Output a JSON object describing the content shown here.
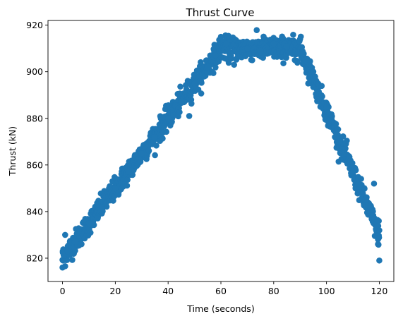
{
  "chart_data": {
    "type": "scatter",
    "title": "Thrust Curve",
    "xlabel": "Time (seconds)",
    "ylabel": "Thrust (kN)",
    "xlim": [
      -5.5,
      125.5
    ],
    "ylim": [
      810,
      922
    ],
    "xticks": [
      0,
      20,
      40,
      60,
      80,
      100,
      120
    ],
    "yticks": [
      820,
      840,
      860,
      880,
      900,
      920
    ],
    "grid": false,
    "point_color": "#1f77b4",
    "profile": {
      "x": [
        0,
        60,
        90,
        120
      ],
      "y": [
        820,
        910,
        910,
        830
      ],
      "noise_kN": 3
    },
    "series": [
      {
        "point_count": 1200,
        "x": [
          0,
          0.1,
          0.2,
          0.5,
          1,
          2,
          5,
          10,
          15,
          20,
          25,
          30,
          35,
          40,
          45,
          48,
          50,
          55,
          58,
          60,
          62,
          65,
          70,
          75,
          80,
          85,
          88,
          90,
          92,
          95,
          100,
          105,
          110,
          115,
          118,
          119.5,
          119.8,
          120
        ],
        "y": [
          816,
          823,
          819,
          821,
          830,
          823,
          827,
          835,
          842,
          850,
          857,
          865,
          872,
          880,
          887,
          881,
          895,
          902,
          907,
          915,
          912,
          903,
          910,
          909,
          912,
          911,
          905,
          914,
          905,
          900,
          885,
          870,
          857,
          845,
          852,
          826,
          836,
          819
        ]
      }
    ]
  }
}
